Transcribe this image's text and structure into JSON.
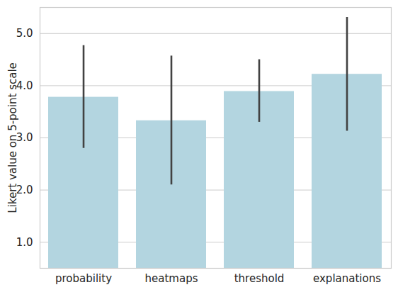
{
  "chart_data": {
    "type": "bar",
    "y_label": "Likert value on 5-point scale",
    "categories": [
      "probability",
      "heatmaps",
      "threshold",
      "explanations"
    ],
    "values": [
      3.78,
      3.33,
      3.89,
      4.22
    ],
    "error_low": [
      2.8,
      2.1,
      3.3,
      3.13
    ],
    "error_high": [
      4.77,
      4.57,
      4.5,
      5.31
    ],
    "color": "#b3d5e0",
    "ylim": [
      0.5,
      5.5
    ],
    "yticks": [
      1,
      2,
      3,
      4,
      5
    ],
    "grid": true
  }
}
